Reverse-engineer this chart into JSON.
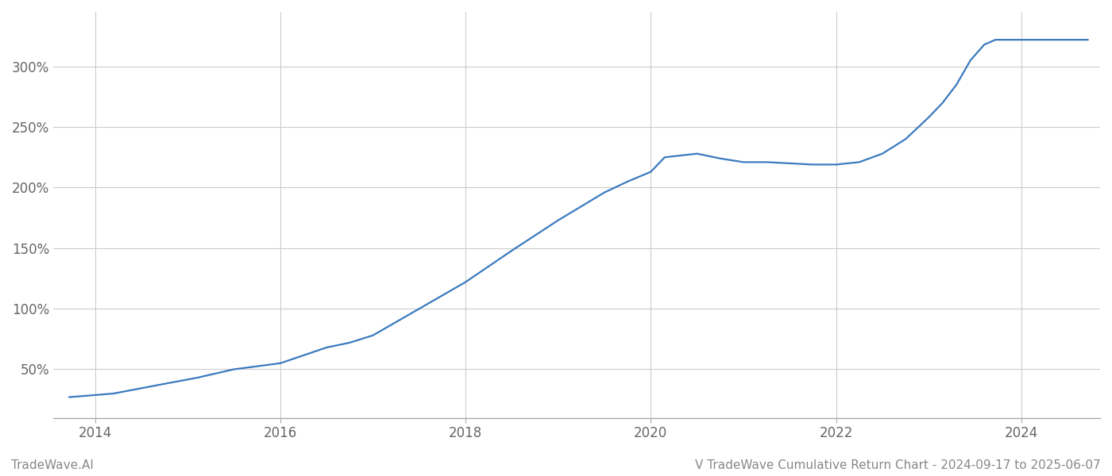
{
  "title": "V TradeWave Cumulative Return Chart - 2024-09-17 to 2025-06-07",
  "watermark": "TradeWave.AI",
  "line_color": "#3a7abf",
  "line_width": 1.6,
  "background_color": "#ffffff",
  "grid_color": "#cccccc",
  "x_years": [
    2014,
    2016,
    2018,
    2020,
    2022,
    2024
  ],
  "ytick_labels": [
    "50%",
    "100%",
    "150%",
    "200%",
    "250%",
    "300%"
  ],
  "ytick_values": [
    50,
    100,
    150,
    200,
    250,
    300
  ],
  "ylim": [
    10,
    345
  ],
  "xlim_start": 2013.55,
  "xlim_end": 2024.85,
  "data_x": [
    2013.72,
    2014.2,
    2014.75,
    2015.1,
    2015.5,
    2016.0,
    2016.5,
    2016.75,
    2017.0,
    2017.5,
    2018.0,
    2018.5,
    2019.0,
    2019.5,
    2019.75,
    2020.0,
    2020.15,
    2020.5,
    2020.75,
    2021.0,
    2021.25,
    2021.5,
    2021.75,
    2022.0,
    2022.25,
    2022.5,
    2022.75,
    2023.0,
    2023.15,
    2023.3,
    2023.45,
    2023.6,
    2023.72,
    2024.0,
    2024.3,
    2024.6,
    2024.72
  ],
  "data_y": [
    27,
    30,
    38,
    43,
    50,
    55,
    68,
    72,
    78,
    100,
    122,
    148,
    173,
    196,
    205,
    213,
    225,
    228,
    224,
    221,
    221,
    220,
    219,
    219,
    221,
    228,
    240,
    258,
    270,
    285,
    305,
    318,
    322,
    322,
    322,
    322,
    322
  ]
}
